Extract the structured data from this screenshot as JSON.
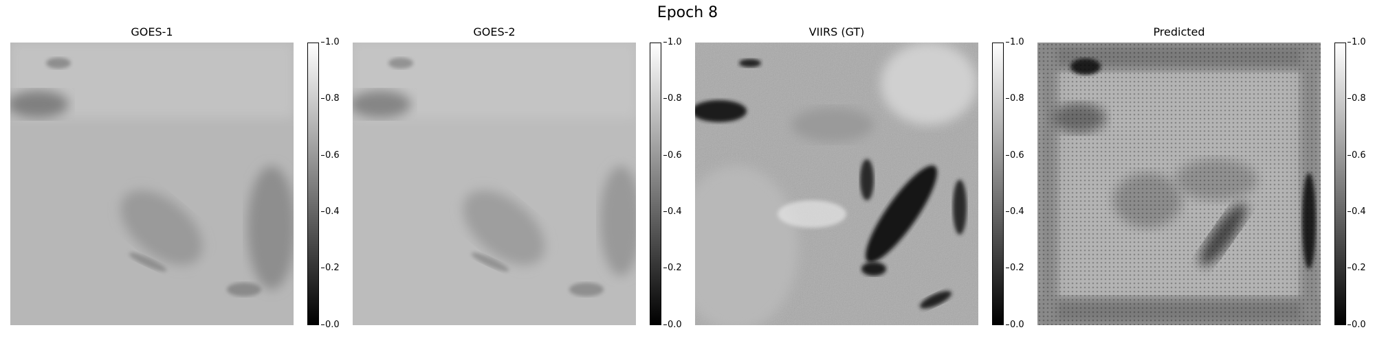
{
  "figure": {
    "title": "Epoch 8",
    "panels": [
      {
        "title": "GOES-1",
        "image": "coarse grayscale satellite image, light gray with darker cloud streaks",
        "colormap": "gray"
      },
      {
        "title": "GOES-2",
        "image": "coarse grayscale satellite image, light gray with darker cloud streaks",
        "colormap": "gray"
      },
      {
        "title": "VIIRS (GT)",
        "image": "high-resolution grayscale satellite image with dark cloud bands",
        "colormap": "gray"
      },
      {
        "title": "Predicted",
        "image": "blurry grayscale predicted image with grid artifacts at borders",
        "colormap": "gray"
      }
    ],
    "colorbar": {
      "min": 0.0,
      "max": 1.0,
      "ticks": [
        "0.0",
        "0.2",
        "0.4",
        "0.6",
        "0.8",
        "1.0"
      ]
    }
  }
}
